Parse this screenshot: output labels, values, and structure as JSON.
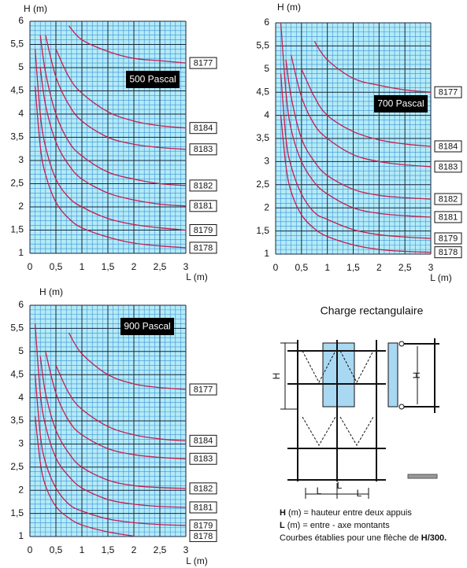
{
  "chart_data": [
    {
      "type": "line",
      "title": "500 Pascal",
      "x_label": "L (m)",
      "y_label": "H (m)",
      "x": [
        0.1,
        0.2,
        0.3,
        0.5,
        0.75,
        1,
        1.5,
        2,
        2.5,
        3
      ],
      "series": [
        {
          "name": "8177",
          "color": "#c4204e",
          "values": [
            null,
            null,
            null,
            null,
            5.9,
            5.6,
            5.35,
            5.2,
            5.15,
            5.1
          ]
        },
        {
          "name": "8184",
          "color": "#c4204e",
          "values": [
            null,
            null,
            null,
            5.4,
            4.8,
            4.45,
            4.05,
            3.85,
            3.75,
            3.7
          ]
        },
        {
          "name": "8183",
          "color": "#c4204e",
          "values": [
            null,
            null,
            5.7,
            4.8,
            4.2,
            3.85,
            3.5,
            3.35,
            3.28,
            3.24
          ]
        },
        {
          "name": "8182",
          "color": "#c4204e",
          "values": [
            null,
            5.7,
            4.9,
            4.0,
            3.4,
            3.1,
            2.75,
            2.6,
            2.5,
            2.46
          ]
        },
        {
          "name": "8181",
          "color": "#c4204e",
          "values": [
            null,
            5.0,
            4.2,
            3.4,
            2.9,
            2.6,
            2.3,
            2.15,
            2.06,
            2.02
          ]
        },
        {
          "name": "8179",
          "color": "#c4204e",
          "values": [
            5.4,
            4.0,
            3.3,
            2.6,
            2.2,
            2.0,
            1.75,
            1.62,
            1.55,
            1.5
          ]
        },
        {
          "name": "8178",
          "color": "#c4204e",
          "values": [
            4.6,
            3.3,
            2.7,
            2.1,
            1.75,
            1.55,
            1.35,
            1.22,
            1.16,
            1.12
          ]
        }
      ],
      "xlim": [
        0,
        3
      ],
      "ylim": [
        1,
        6
      ],
      "xticks": [
        0,
        {
          "value": 0.5,
          "label": "0,5"
        },
        1,
        {
          "value": 1.5,
          "label": "1,5"
        },
        2,
        {
          "value": 2.5,
          "label": "2,5"
        },
        3
      ],
      "yticks": [
        1,
        {
          "value": 1.5,
          "label": "1,5"
        },
        2,
        {
          "value": 2.5,
          "label": "2,5"
        },
        3,
        {
          "value": 3.5,
          "label": "3,5"
        },
        4,
        {
          "value": 4.5,
          "label": "4,5"
        },
        5,
        {
          "value": 5.5,
          "label": "5,5"
        },
        6
      ],
      "grid": true,
      "grid_subdivisions": 5
    },
    {
      "type": "line",
      "title": "700 Pascal",
      "x_label": "L (m)",
      "y_label": "H (m)",
      "x": [
        0.1,
        0.2,
        0.3,
        0.5,
        0.75,
        1,
        1.5,
        2,
        2.5,
        3
      ],
      "series": [
        {
          "name": "8177",
          "color": "#c4204e",
          "values": [
            null,
            null,
            null,
            null,
            5.6,
            5.2,
            4.8,
            4.65,
            4.55,
            4.5
          ]
        },
        {
          "name": "8184",
          "color": "#c4204e",
          "values": [
            null,
            null,
            null,
            5.0,
            4.4,
            4.0,
            3.65,
            3.47,
            3.38,
            3.33
          ]
        },
        {
          "name": "8183",
          "color": "#c4204e",
          "values": [
            null,
            null,
            5.3,
            4.4,
            3.8,
            3.5,
            3.15,
            3.0,
            2.93,
            2.89
          ]
        },
        {
          "name": "8182",
          "color": "#c4204e",
          "values": [
            null,
            5.2,
            4.4,
            3.5,
            3.0,
            2.7,
            2.4,
            2.27,
            2.22,
            2.19
          ]
        },
        {
          "name": "8181",
          "color": "#c4204e",
          "values": [
            6.0,
            4.5,
            3.7,
            3.0,
            2.55,
            2.3,
            2.0,
            1.88,
            1.83,
            1.8
          ]
        },
        {
          "name": "8179",
          "color": "#c4204e",
          "values": [
            4.9,
            3.5,
            2.9,
            2.3,
            1.9,
            1.75,
            1.53,
            1.42,
            1.37,
            1.34
          ]
        },
        {
          "name": "8178",
          "color": "#c4204e",
          "values": [
            4.0,
            2.9,
            2.35,
            1.85,
            1.55,
            1.38,
            1.2,
            1.1,
            1.06,
            1.04
          ]
        }
      ],
      "xlim": [
        0,
        3
      ],
      "ylim": [
        1,
        6
      ],
      "xticks": [
        0,
        {
          "value": 0.5,
          "label": "0,5"
        },
        1,
        {
          "value": 1.5,
          "label": "1,5"
        },
        2,
        {
          "value": 2.5,
          "label": "2,5"
        },
        3
      ],
      "yticks": [
        1,
        {
          "value": 1.5,
          "label": "1,5"
        },
        2,
        {
          "value": 2.5,
          "label": "2,5"
        },
        3,
        {
          "value": 3.5,
          "label": "3,5"
        },
        4,
        {
          "value": 4.5,
          "label": "4,5"
        },
        5,
        {
          "value": 5.5,
          "label": "5,5"
        },
        6
      ],
      "grid": true,
      "grid_subdivisions": 5
    },
    {
      "type": "line",
      "title": "900 Pascal",
      "x_label": "L (m)",
      "y_label": "H (m)",
      "x": [
        0.1,
        0.2,
        0.3,
        0.5,
        0.75,
        1,
        1.5,
        2,
        2.5,
        3
      ],
      "series": [
        {
          "name": "8177",
          "color": "#c4204e",
          "values": [
            null,
            null,
            null,
            null,
            5.4,
            4.95,
            4.5,
            4.3,
            4.22,
            4.18
          ]
        },
        {
          "name": "8184",
          "color": "#c4204e",
          "values": [
            null,
            null,
            null,
            4.7,
            4.1,
            3.75,
            3.38,
            3.2,
            3.11,
            3.07
          ]
        },
        {
          "name": "8183",
          "color": "#c4204e",
          "values": [
            null,
            null,
            5.0,
            4.1,
            3.5,
            3.2,
            2.9,
            2.77,
            2.71,
            2.68
          ]
        },
        {
          "name": "8182",
          "color": "#c4204e",
          "values": [
            null,
            4.9,
            4.1,
            3.3,
            2.8,
            2.5,
            2.22,
            2.1,
            2.06,
            2.04
          ]
        },
        {
          "name": "8181",
          "color": "#c4204e",
          "values": [
            5.6,
            4.1,
            3.4,
            2.7,
            2.3,
            2.05,
            1.8,
            1.7,
            1.65,
            1.63
          ]
        },
        {
          "name": "8179",
          "color": "#c4204e",
          "values": [
            4.5,
            3.2,
            2.6,
            2.05,
            1.7,
            1.55,
            1.38,
            1.3,
            1.26,
            1.24
          ]
        },
        {
          "name": "8178",
          "color": "#c4204e",
          "values": [
            3.6,
            2.6,
            2.1,
            1.65,
            1.4,
            1.25,
            1.1,
            1.01,
            null,
            null
          ]
        }
      ],
      "xlim": [
        0,
        3
      ],
      "ylim": [
        1,
        6
      ],
      "xticks": [
        0,
        {
          "value": 0.5,
          "label": "0,5"
        },
        1,
        {
          "value": 1.5,
          "label": "1,5"
        },
        2,
        {
          "value": 2.5,
          "label": "2,5"
        },
        3
      ],
      "yticks": [
        1,
        {
          "value": 1.5,
          "label": "1,5"
        },
        2,
        {
          "value": 2.5,
          "label": "2,5"
        },
        3,
        {
          "value": 3.5,
          "label": "3,5"
        },
        4,
        {
          "value": 4.5,
          "label": "4,5"
        },
        5,
        {
          "value": 5.5,
          "label": "5,5"
        },
        6
      ],
      "grid": true,
      "grid_subdivisions": 5
    }
  ],
  "diagram": {
    "title": "Charge rectangulaire",
    "dimension_labels": [
      "H",
      "H",
      "L",
      "L",
      "L"
    ],
    "captions": [
      {
        "bold": "H",
        "text": " (m) = hauteur entre deux appuis"
      },
      {
        "bold": "L",
        "text": " (m) = entre - axe montants"
      },
      {
        "text": "Courbes établies pour une flèche de ",
        "bold": "H/300."
      }
    ]
  }
}
